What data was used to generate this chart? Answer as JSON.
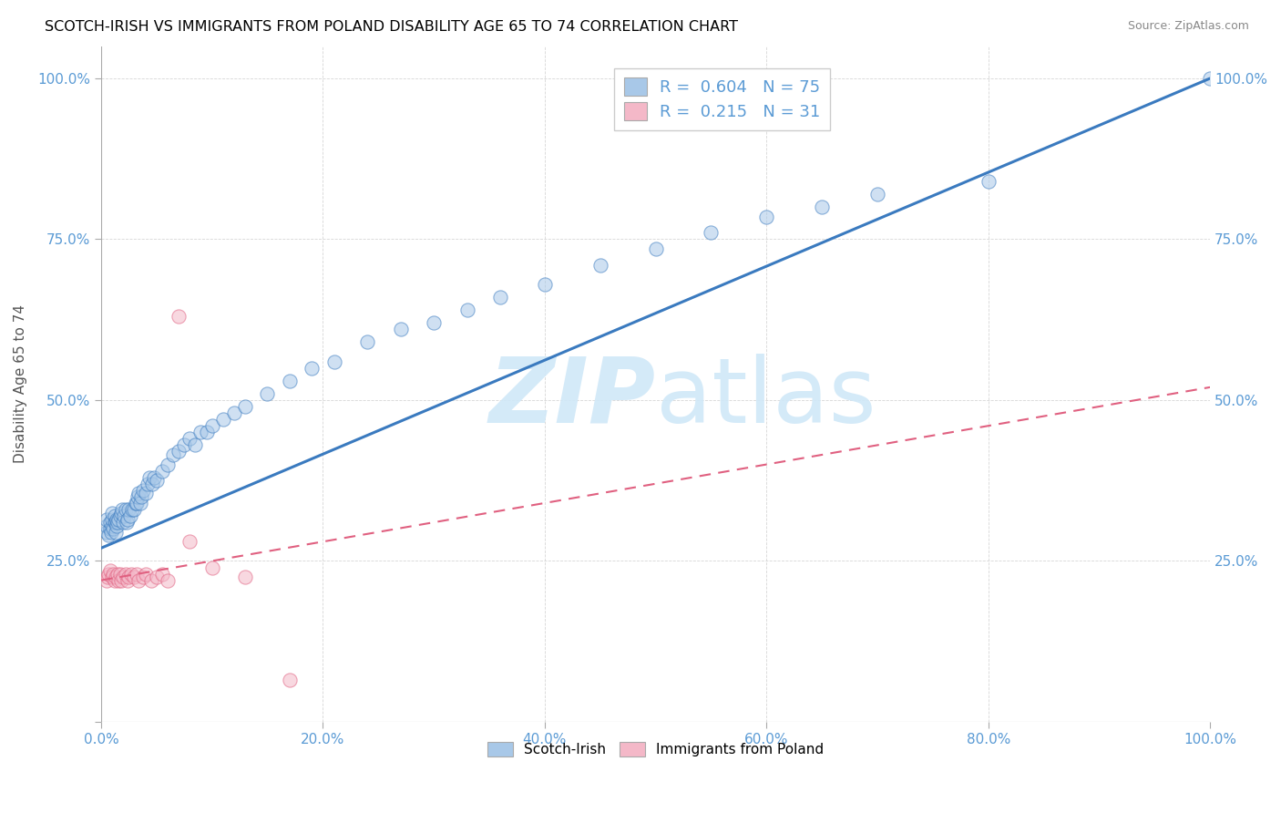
{
  "title": "SCOTCH-IRISH VS IMMIGRANTS FROM POLAND DISABILITY AGE 65 TO 74 CORRELATION CHART",
  "source": "Source: ZipAtlas.com",
  "ylabel": "Disability Age 65 to 74",
  "legend_labels": [
    "Scotch-Irish",
    "Immigrants from Poland"
  ],
  "blue_R": 0.604,
  "blue_N": 75,
  "pink_R": 0.215,
  "pink_N": 31,
  "blue_color": "#a8c8e8",
  "pink_color": "#f4b8c8",
  "blue_fill": "#a8c8e8",
  "pink_fill": "#f4b8c8",
  "blue_line_color": "#3a7abf",
  "pink_line_color": "#e06080",
  "label_color": "#5b9bd5",
  "watermark_color": "#d0e8f8",
  "blue_scatter_x": [
    0.005,
    0.005,
    0.005,
    0.007,
    0.008,
    0.008,
    0.009,
    0.01,
    0.01,
    0.01,
    0.011,
    0.012,
    0.012,
    0.013,
    0.013,
    0.014,
    0.014,
    0.015,
    0.016,
    0.017,
    0.018,
    0.019,
    0.02,
    0.021,
    0.022,
    0.023,
    0.024,
    0.025,
    0.026,
    0.028,
    0.03,
    0.031,
    0.032,
    0.033,
    0.034,
    0.035,
    0.036,
    0.038,
    0.04,
    0.042,
    0.044,
    0.046,
    0.048,
    0.05,
    0.055,
    0.06,
    0.065,
    0.07,
    0.075,
    0.08,
    0.085,
    0.09,
    0.095,
    0.1,
    0.11,
    0.12,
    0.13,
    0.15,
    0.17,
    0.19,
    0.21,
    0.24,
    0.27,
    0.3,
    0.33,
    0.36,
    0.4,
    0.45,
    0.5,
    0.55,
    0.6,
    0.65,
    0.7,
    0.8,
    1.0
  ],
  "blue_scatter_y": [
    0.295,
    0.305,
    0.315,
    0.29,
    0.3,
    0.31,
    0.295,
    0.305,
    0.315,
    0.325,
    0.3,
    0.31,
    0.32,
    0.295,
    0.31,
    0.305,
    0.315,
    0.31,
    0.315,
    0.32,
    0.325,
    0.33,
    0.31,
    0.32,
    0.33,
    0.31,
    0.315,
    0.33,
    0.32,
    0.33,
    0.33,
    0.34,
    0.34,
    0.35,
    0.355,
    0.34,
    0.35,
    0.36,
    0.355,
    0.37,
    0.38,
    0.37,
    0.38,
    0.375,
    0.39,
    0.4,
    0.415,
    0.42,
    0.43,
    0.44,
    0.43,
    0.45,
    0.45,
    0.46,
    0.47,
    0.48,
    0.49,
    0.51,
    0.53,
    0.55,
    0.56,
    0.59,
    0.61,
    0.62,
    0.64,
    0.66,
    0.68,
    0.71,
    0.735,
    0.76,
    0.785,
    0.8,
    0.82,
    0.84,
    1.0
  ],
  "pink_scatter_x": [
    0.005,
    0.006,
    0.007,
    0.008,
    0.01,
    0.011,
    0.012,
    0.013,
    0.015,
    0.016,
    0.017,
    0.018,
    0.02,
    0.022,
    0.024,
    0.025,
    0.027,
    0.03,
    0.032,
    0.034,
    0.038,
    0.04,
    0.045,
    0.05,
    0.055,
    0.06,
    0.07,
    0.08,
    0.1,
    0.13,
    0.17
  ],
  "pink_scatter_y": [
    0.22,
    0.225,
    0.23,
    0.235,
    0.225,
    0.23,
    0.22,
    0.225,
    0.23,
    0.22,
    0.23,
    0.22,
    0.225,
    0.23,
    0.22,
    0.225,
    0.23,
    0.225,
    0.23,
    0.22,
    0.225,
    0.23,
    0.22,
    0.225,
    0.23,
    0.22,
    0.63,
    0.28,
    0.24,
    0.225,
    0.065
  ],
  "xlim": [
    0.0,
    1.0
  ],
  "ylim": [
    0.0,
    1.05
  ],
  "blue_trend_x": [
    0.0,
    1.0
  ],
  "blue_trend_y": [
    0.27,
    1.0
  ],
  "pink_trend_x": [
    0.0,
    1.0
  ],
  "pink_trend_y": [
    0.22,
    0.52
  ]
}
